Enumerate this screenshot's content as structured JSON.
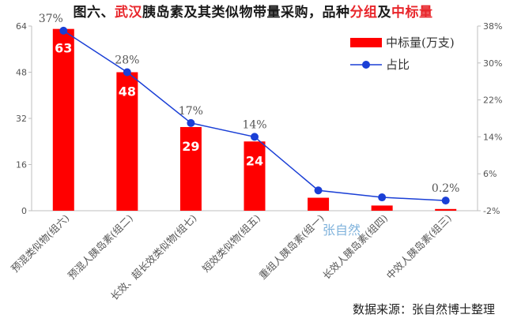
{
  "title": {
    "part1": "图六、",
    "part2": "武汉",
    "part3": "胰岛素及其类似物带量采购，品种",
    "part4": "分组",
    "part5": "及",
    "part6": "中标量"
  },
  "watermark": "张自然",
  "source": "数据来源：张自然博士整理",
  "colors": {
    "bar": "#ff0000",
    "line": "#1a3fd6",
    "dot": "#1a3fd6"
  },
  "chart_data": {
    "type": "bar",
    "categories": [
      "预混类似物(组六)",
      "预混人胰岛素(组二)",
      "长效、超长效类似物(组七)",
      "短效类似物(组五)",
      "重组人胰岛素(组一)",
      "长效人胰岛素(组四)",
      "中效人胰岛素(组三)"
    ],
    "series": [
      {
        "name": "中标量(万支)",
        "type": "bar",
        "axis": "left",
        "values": [
          63,
          48,
          29,
          24,
          4.5,
          1.8,
          0.6
        ],
        "labels": [
          "63",
          "48",
          "29",
          "24",
          "",
          "",
          ""
        ]
      },
      {
        "name": "占比",
        "type": "line",
        "axis": "right",
        "values": [
          37,
          28,
          17,
          14,
          2.4,
          0.9,
          0.2
        ],
        "labels": [
          "37%",
          "28%",
          "17%",
          "14%",
          "",
          "",
          "0.2%"
        ]
      }
    ],
    "left_axis": {
      "ylim": [
        0,
        64
      ],
      "ticks": [
        "0",
        "16",
        "32",
        "48",
        "64"
      ]
    },
    "right_axis": {
      "ylim": [
        -2,
        38
      ],
      "ticks": [
        "-2%",
        "6%",
        "14%",
        "22%",
        "30%",
        "38%"
      ]
    },
    "legend": "top-right",
    "grid": false
  }
}
